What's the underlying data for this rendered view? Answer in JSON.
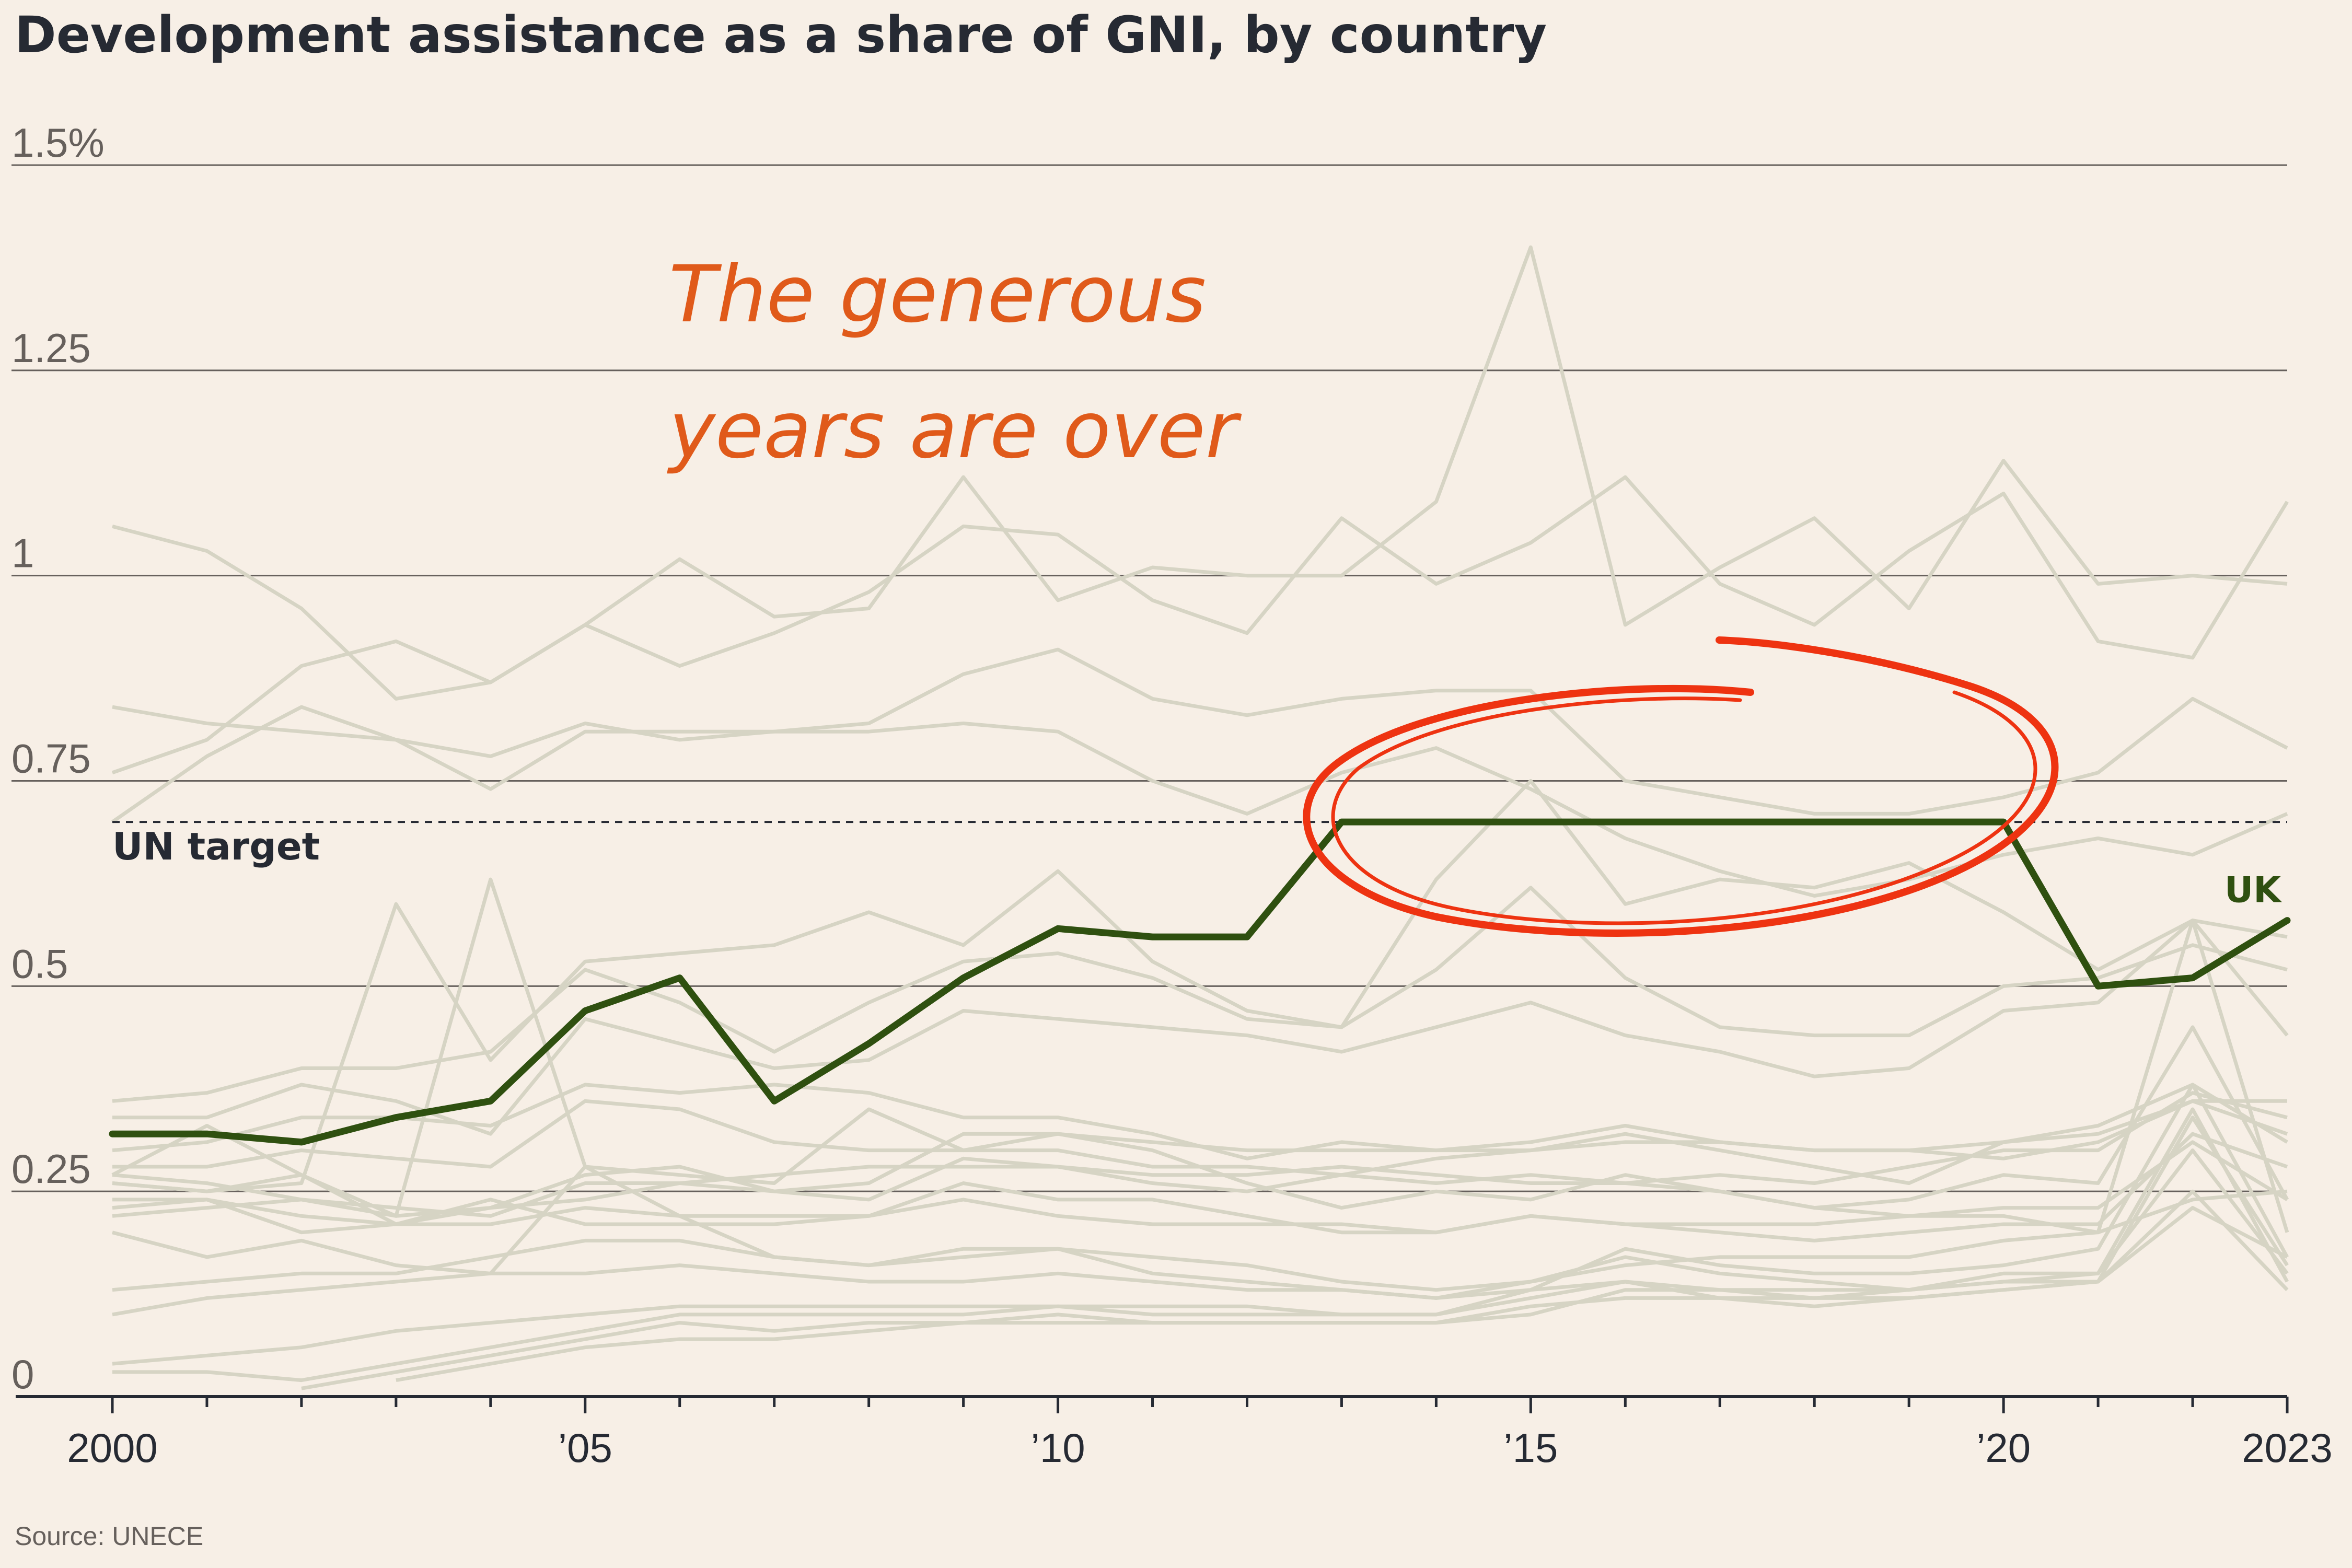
{
  "colors": {
    "background": "#f7efe6",
    "highlight": "#2f5010",
    "others": "#d6d4c4",
    "annotation": "#ee3311",
    "annotation_text": "#e05a1a",
    "gridline": "#66605c",
    "text": "#262a33"
  },
  "annotation": {
    "line1": "The generous",
    "line2": "years are over"
  },
  "source": "Source: UNECE",
  "chart_data": {
    "type": "line",
    "title": "Development assistance as a share of GNI, by country",
    "ylim": [
      0,
      1.5
    ],
    "xlim": [
      2000,
      2023
    ],
    "y_ticks": [
      {
        "value": 0,
        "label": "0"
      },
      {
        "value": 0.25,
        "label": "0.25"
      },
      {
        "value": 0.5,
        "label": "0.5"
      },
      {
        "value": 0.75,
        "label": "0.75"
      },
      {
        "value": 1.0,
        "label": "1"
      },
      {
        "value": 1.25,
        "label": "1.25"
      },
      {
        "value": 1.5,
        "label": "1.5%"
      }
    ],
    "x_ticks": [
      {
        "value": 2000,
        "label": "2000"
      },
      {
        "value": 2005,
        "label": "’05"
      },
      {
        "value": 2010,
        "label": "’10"
      },
      {
        "value": 2015,
        "label": "’15"
      },
      {
        "value": 2020,
        "label": "’20"
      },
      {
        "value": 2023,
        "label": "2023"
      }
    ],
    "reference_line": {
      "value": 0.7,
      "label": "UN target"
    },
    "highlight_series": {
      "name": "UK",
      "x": [
        2000,
        2001,
        2002,
        2003,
        2004,
        2005,
        2006,
        2007,
        2008,
        2009,
        2010,
        2011,
        2012,
        2013,
        2014,
        2015,
        2016,
        2017,
        2018,
        2019,
        2020,
        2021,
        2022,
        2023
      ],
      "values": [
        0.32,
        0.32,
        0.31,
        0.34,
        0.36,
        0.47,
        0.51,
        0.36,
        0.43,
        0.51,
        0.57,
        0.56,
        0.56,
        0.7,
        0.7,
        0.7,
        0.7,
        0.7,
        0.7,
        0.7,
        0.7,
        0.5,
        0.51,
        0.58
      ]
    },
    "background_series": [
      {
        "x_start": 2000,
        "values": [
          1.06,
          1.03,
          0.96,
          0.85,
          0.87,
          0.94,
          0.89,
          0.93,
          0.98,
          1.06,
          1.05,
          0.97,
          0.93,
          1.07,
          0.99,
          1.04,
          1.12,
          0.99,
          0.94,
          1.03,
          1.1,
          0.92,
          0.9,
          1.09
        ]
      },
      {
        "x_start": 2000,
        "values": [
          0.76,
          0.8,
          0.89,
          0.92,
          0.87,
          0.94,
          1.02,
          0.95,
          0.96,
          1.12,
          0.97,
          1.01,
          1.0,
          1.0,
          1.09,
          1.4,
          0.94,
          1.01,
          1.07,
          0.96,
          1.14,
          0.99,
          1.0,
          0.99
        ]
      },
      {
        "x_start": 2000,
        "values": [
          0.84,
          0.82,
          0.81,
          0.8,
          0.78,
          0.82,
          0.8,
          0.81,
          0.82,
          0.88,
          0.91,
          0.85,
          0.83,
          0.85,
          0.86,
          0.86,
          0.75,
          0.73,
          0.71,
          0.71,
          0.73,
          0.76,
          0.85,
          0.79
        ]
      },
      {
        "x_start": 2000,
        "values": [
          0.7,
          0.78,
          0.84,
          0.8,
          0.74,
          0.81,
          0.81,
          0.81,
          0.81,
          0.82,
          0.81,
          0.75,
          0.71,
          0.76,
          0.79,
          0.74,
          0.68,
          0.64,
          0.61,
          0.63,
          0.66,
          0.68,
          0.66,
          0.71
        ]
      },
      {
        "x_start": 2000,
        "values": [
          0.26,
          0.25,
          0.26,
          0.6,
          0.41,
          0.53,
          0.54,
          0.55,
          0.59,
          0.55,
          0.64,
          0.53,
          0.47,
          0.45,
          0.63,
          0.75,
          0.6,
          0.63,
          0.62,
          0.65,
          0.59,
          0.52,
          0.58,
          0.56
        ]
      },
      {
        "x_start": 2000,
        "values": [
          0.27,
          0.33,
          0.27,
          0.22,
          0.63,
          0.28,
          0.27,
          0.26,
          0.35,
          0.3,
          0.32,
          0.31,
          0.3,
          0.3,
          0.3,
          0.31,
          0.33,
          0.31,
          0.3,
          0.3,
          0.31,
          0.32,
          0.36,
          0.32
        ]
      },
      {
        "x_start": 2000,
        "values": [
          0.36,
          0.37,
          0.4,
          0.4,
          0.42,
          0.52,
          0.48,
          0.42,
          0.48,
          0.53,
          0.54,
          0.51,
          0.46,
          0.45,
          0.52,
          0.62,
          0.51,
          0.45,
          0.44,
          0.44,
          0.5,
          0.51,
          0.55,
          0.52
        ]
      },
      {
        "x_start": 2000,
        "values": [
          0.34,
          0.34,
          0.38,
          0.36,
          0.32,
          0.46,
          0.43,
          0.4,
          0.41,
          0.47,
          0.46,
          0.45,
          0.44,
          0.42,
          0.45,
          0.48,
          0.44,
          0.42,
          0.39,
          0.4,
          0.47,
          0.48,
          0.58,
          0.44
        ]
      },
      {
        "x_start": 2000,
        "values": [
          0.3,
          0.31,
          0.34,
          0.34,
          0.33,
          0.38,
          0.37,
          0.38,
          0.37,
          0.34,
          0.34,
          0.32,
          0.29,
          0.31,
          0.3,
          0.3,
          0.31,
          0.31,
          0.3,
          0.3,
          0.29,
          0.31,
          0.36,
          0.36
        ]
      },
      {
        "x_start": 2000,
        "values": [
          0.28,
          0.28,
          0.3,
          0.29,
          0.28,
          0.36,
          0.35,
          0.31,
          0.3,
          0.3,
          0.3,
          0.28,
          0.28,
          0.27,
          0.26,
          0.27,
          0.26,
          0.27,
          0.26,
          0.28,
          0.3,
          0.3,
          0.37,
          0.34
        ]
      },
      {
        "x_start": 2000,
        "values": [
          0.26,
          0.25,
          0.27,
          0.21,
          0.23,
          0.27,
          0.28,
          0.25,
          0.26,
          0.32,
          0.32,
          0.3,
          0.26,
          0.23,
          0.25,
          0.24,
          0.27,
          0.25,
          0.23,
          0.24,
          0.27,
          0.26,
          0.45,
          0.24
        ]
      },
      {
        "x_start": 2000,
        "values": [
          0.24,
          0.24,
          0.22,
          0.21,
          0.24,
          0.21,
          0.21,
          0.21,
          0.22,
          0.26,
          0.24,
          0.24,
          0.22,
          0.2,
          0.2,
          0.22,
          0.21,
          0.2,
          0.19,
          0.2,
          0.21,
          0.21,
          0.32,
          0.28
        ]
      },
      {
        "x_start": 2000,
        "values": [
          0.23,
          0.24,
          0.2,
          0.21,
          0.21,
          0.23,
          0.22,
          0.22,
          0.22,
          0.24,
          0.22,
          0.21,
          0.21,
          0.21,
          0.2,
          0.22,
          0.21,
          0.21,
          0.21,
          0.22,
          0.23,
          0.23,
          0.31,
          0.24
        ]
      },
      {
        "x_start": 2000,
        "values": [
          0.2,
          0.17,
          0.19,
          0.16,
          0.15,
          0.28,
          0.22,
          0.17,
          0.16,
          0.17,
          0.18,
          0.17,
          0.16,
          0.14,
          0.13,
          0.14,
          0.16,
          0.17,
          0.17,
          0.17,
          0.19,
          0.2,
          0.58,
          0.2
        ]
      },
      {
        "x_start": 2000,
        "values": [
          0.13,
          0.14,
          0.15,
          0.15,
          0.17,
          0.19,
          0.19,
          0.17,
          0.16,
          0.18,
          0.18,
          0.15,
          0.14,
          0.13,
          0.12,
          0.13,
          0.18,
          0.16,
          0.15,
          0.15,
          0.16,
          0.18,
          0.38,
          0.17
        ]
      },
      {
        "x_start": 2000,
        "values": [
          0.1,
          0.12,
          0.13,
          0.14,
          0.15,
          0.15,
          0.16,
          0.15,
          0.14,
          0.14,
          0.15,
          0.14,
          0.13,
          0.13,
          0.12,
          0.14,
          0.17,
          0.15,
          0.14,
          0.13,
          0.14,
          0.15,
          0.35,
          0.14
        ]
      },
      {
        "x_start": 2000,
        "values": [
          0.04,
          0.05,
          0.06,
          0.08,
          0.09,
          0.1,
          0.11,
          0.11,
          0.11,
          0.11,
          0.11,
          0.11,
          0.11,
          0.1,
          0.1,
          0.13,
          0.14,
          0.13,
          0.13,
          0.13,
          0.15,
          0.15,
          0.3,
          0.15
        ]
      },
      {
        "x_start": 2000,
        "values": [
          0.03,
          0.03,
          0.02,
          0.04,
          0.06,
          0.08,
          0.1,
          0.1,
          0.1,
          0.1,
          0.11,
          0.1,
          0.1,
          0.1,
          0.1,
          0.12,
          0.14,
          0.12,
          0.12,
          0.12,
          0.13,
          0.14,
          0.25,
          0.13
        ]
      },
      {
        "x_start": 2002,
        "values": [
          0.01,
          0.03,
          0.05,
          0.07,
          0.09,
          0.08,
          0.09,
          0.09,
          0.1,
          0.09,
          0.09,
          0.09,
          0.09,
          0.11,
          0.12,
          0.12,
          0.11,
          0.12,
          0.13,
          0.14,
          0.23,
          0.17
        ]
      },
      {
        "x_start": 2003,
        "values": [
          0.02,
          0.04,
          0.06,
          0.07,
          0.07,
          0.08,
          0.09,
          0.09,
          0.09,
          0.09,
          0.09,
          0.09,
          0.1,
          0.13,
          0.13,
          0.12,
          0.13,
          0.14,
          0.14,
          0.34,
          0.16
        ]
      },
      {
        "x_start": 2000,
        "values": [
          0.27,
          0.26,
          0.24,
          0.22,
          0.23,
          0.24,
          0.26,
          0.27,
          0.28,
          0.28,
          0.28,
          0.27,
          0.27,
          0.28,
          0.27,
          0.26,
          0.26,
          0.25,
          0.23,
          0.22,
          0.22,
          0.2,
          0.24,
          0.25
        ]
      },
      {
        "x_start": 2000,
        "values": [
          0.22,
          0.23,
          0.24,
          0.23,
          0.22,
          0.26,
          0.26,
          0.25,
          0.24,
          0.29,
          0.28,
          0.26,
          0.25,
          0.27,
          0.29,
          0.3,
          0.32,
          0.3,
          0.28,
          0.26,
          0.31,
          0.33,
          0.38,
          0.31
        ]
      }
    ]
  }
}
